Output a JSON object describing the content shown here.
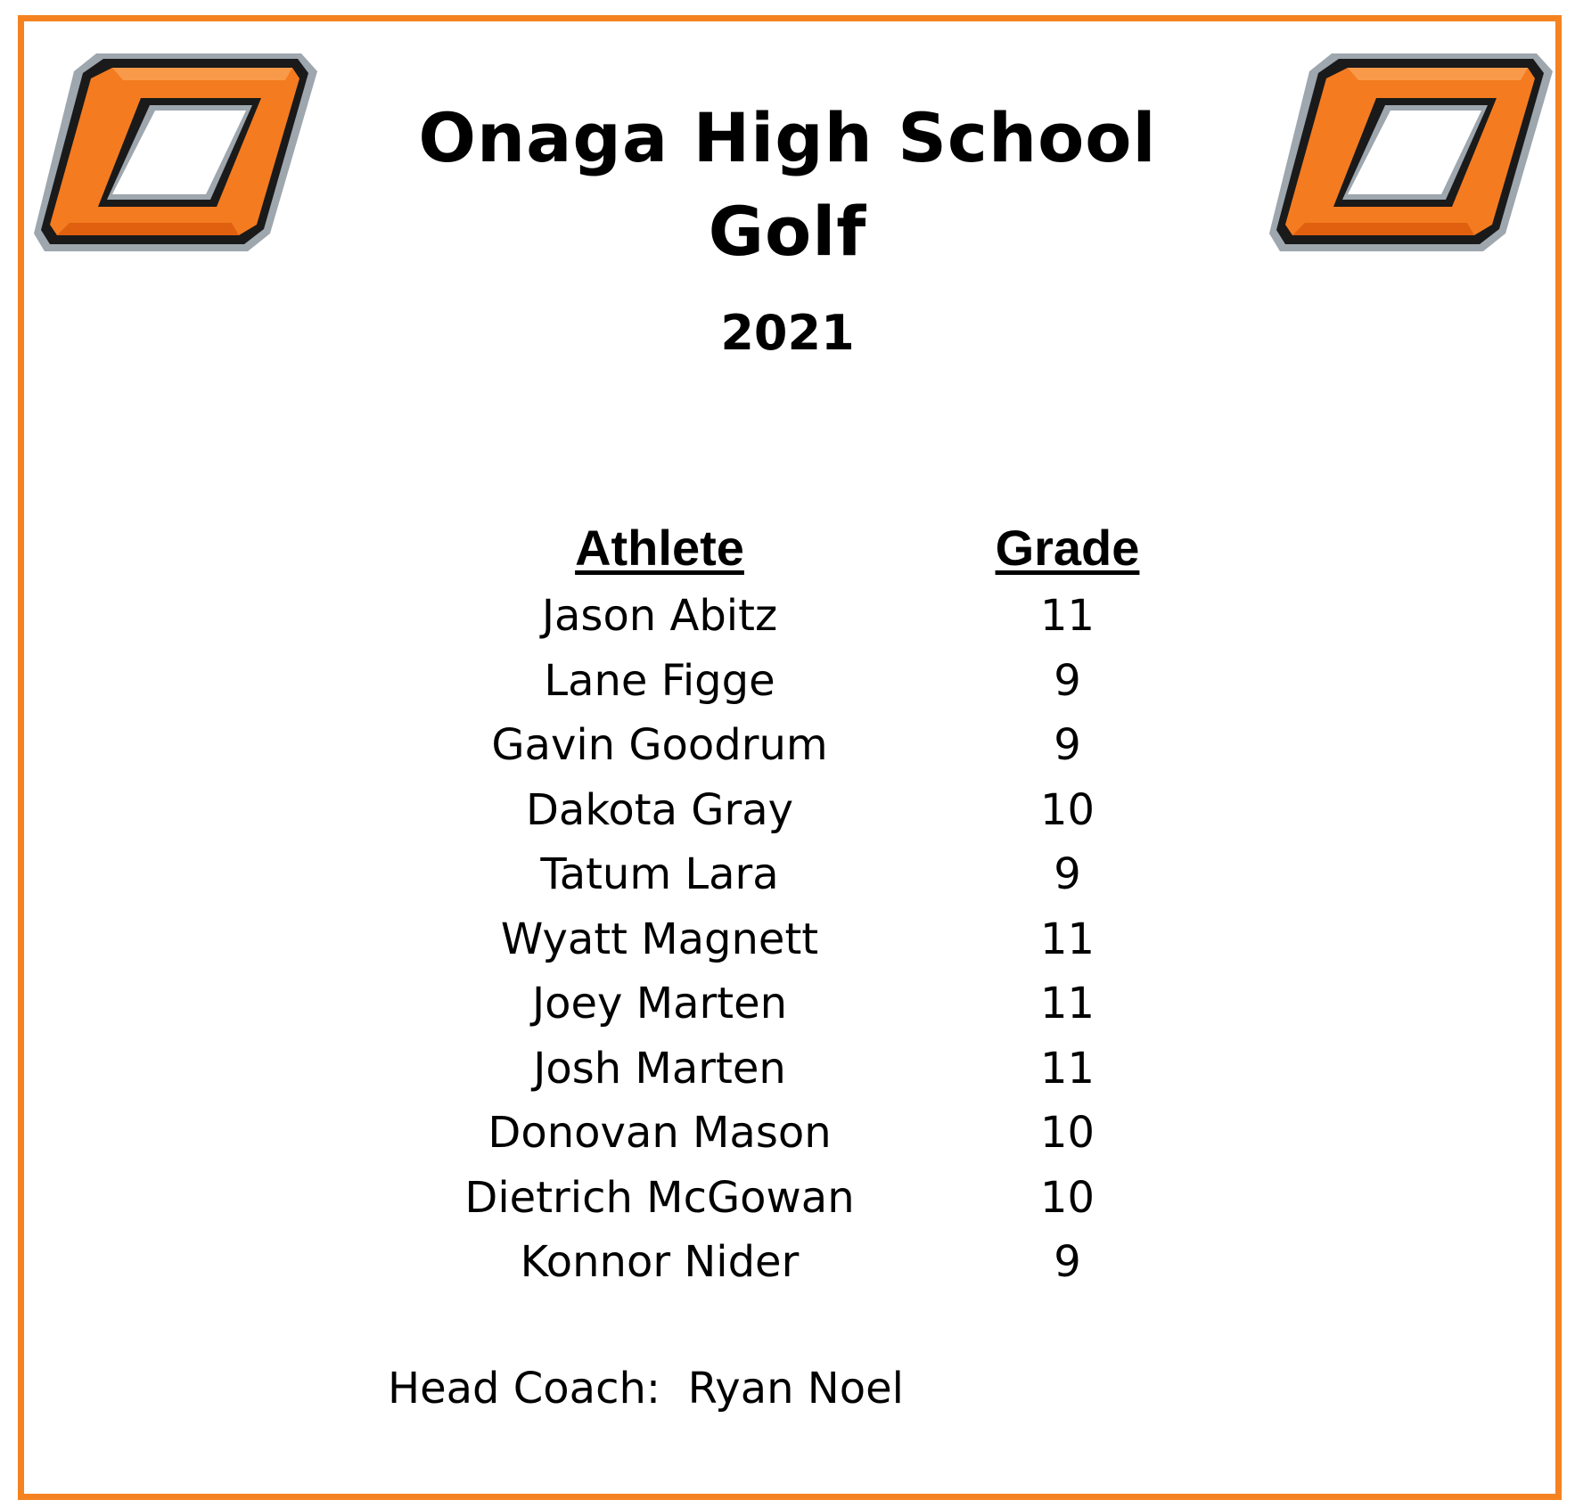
{
  "header": {
    "title_line1": "Onaga High School",
    "title_line2": "Golf",
    "year": "2021"
  },
  "colors": {
    "border": "#F58220",
    "logo_orange": "#F47B20",
    "logo_orange_dark": "#E06010",
    "logo_outline": "#1A1A1A",
    "logo_silver": "#9EA6AE"
  },
  "logos": [
    {
      "icon": "letter-o-logo-icon"
    },
    {
      "icon": "letter-o-logo-icon"
    }
  ],
  "roster": {
    "headers": {
      "athlete": "Athlete",
      "grade": "Grade"
    },
    "rows": [
      {
        "athlete": "Jason Abitz",
        "grade": "11"
      },
      {
        "athlete": "Lane Figge",
        "grade": "9"
      },
      {
        "athlete": "Gavin Goodrum",
        "grade": "9"
      },
      {
        "athlete": "Dakota Gray",
        "grade": "10"
      },
      {
        "athlete": "Tatum Lara",
        "grade": "9"
      },
      {
        "athlete": "Wyatt Magnett",
        "grade": "11"
      },
      {
        "athlete": "Joey Marten",
        "grade": "11"
      },
      {
        "athlete": "Josh Marten",
        "grade": "11"
      },
      {
        "athlete": "Donovan Mason",
        "grade": "10"
      },
      {
        "athlete": "Dietrich McGowan",
        "grade": "10"
      },
      {
        "athlete": "Konnor Nider",
        "grade": "9"
      }
    ]
  },
  "footer": {
    "coach": "Head Coach:  Ryan Noel"
  }
}
